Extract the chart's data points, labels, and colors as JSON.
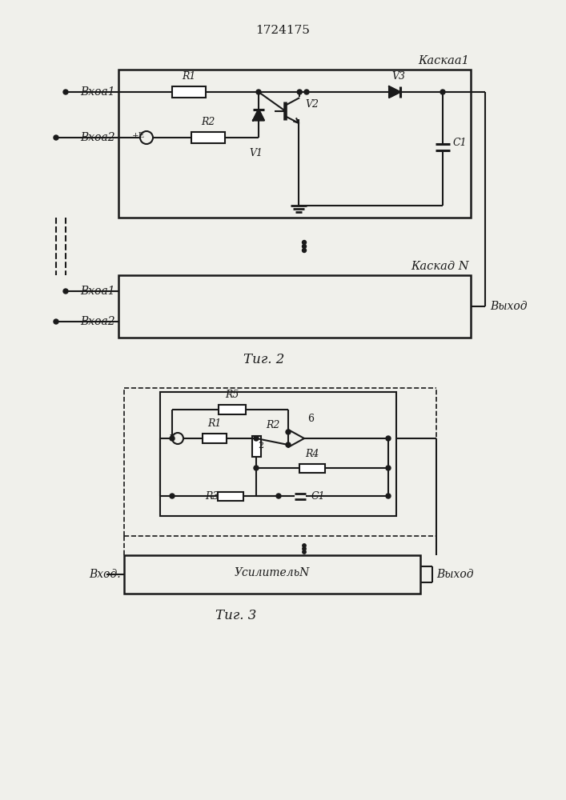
{
  "title": "1724175",
  "fig1_label": "Τиг. 2",
  "fig2_label": "Τиг. 3",
  "cascade1_label": "Каскаа1",
  "cascadeN_label": "Каскад N",
  "usilitelN_label": "УсилительN",
  "vhod1_label": "Вхоа1",
  "vhod2_label": "Вхоа2",
  "vhod1N_label": "Вхоа1",
  "vhod2N_label": "Вхоа2",
  "vhod_label": "Вход.",
  "vyhod_label": "Выход",
  "bg_color": "#f0f0eb",
  "line_color": "#1a1a1a",
  "text_color": "#1a1a1a"
}
